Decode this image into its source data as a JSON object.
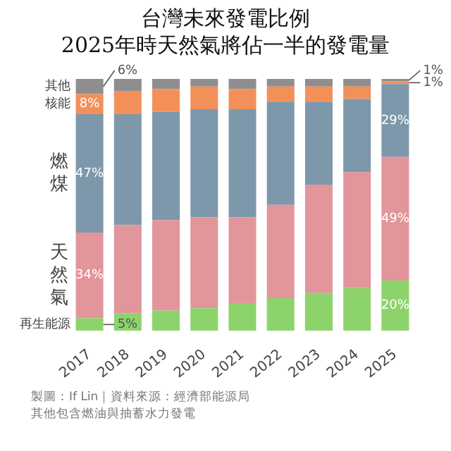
{
  "chart_data": {
    "type": "bar",
    "title": "台灣未來發電比例",
    "subtitle": "2025年時天然氣將佔一半的發電量",
    "annotations": [
      "製圖：If Lin｜資料來源：經濟部能源局",
      "其他包含燃油與抽蓄水力發電"
    ],
    "categories": [
      "2017",
      "2018",
      "2019",
      "2020",
      "2021",
      "2022",
      "2023",
      "2024",
      "2025"
    ],
    "stacked": true,
    "ylim": [
      0,
      100
    ],
    "tick_labels": "x",
    "series": [
      {
        "name": "再生能源",
        "color": "#8dd36b",
        "values": [
          5,
          7,
          8,
          9,
          11,
          13,
          15,
          17,
          20
        ],
        "value_labels": [
          "5%",
          null,
          null,
          null,
          null,
          null,
          null,
          null,
          "20%"
        ]
      },
      {
        "name": "天然氣",
        "color": "#e2959a",
        "values": [
          34,
          35,
          36,
          36,
          34,
          37,
          43,
          46,
          49
        ],
        "value_labels": [
          "34%",
          null,
          null,
          null,
          null,
          null,
          null,
          null,
          "49%"
        ]
      },
      {
        "name": "燃煤",
        "color": "#7d98ab",
        "values": [
          47,
          44,
          43,
          43,
          43,
          41,
          33,
          29,
          29
        ],
        "value_labels": [
          "47%",
          null,
          null,
          null,
          null,
          null,
          null,
          null,
          "29%"
        ]
      },
      {
        "name": "核能",
        "color": "#f3905a",
        "values": [
          8,
          9,
          9,
          9,
          8,
          6,
          6,
          5,
          1
        ],
        "value_labels": [
          "8%",
          null,
          null,
          null,
          null,
          null,
          null,
          null,
          "1%"
        ]
      },
      {
        "name": "其他",
        "color": "#8e8e8e",
        "values": [
          6,
          5,
          4,
          3,
          4,
          3,
          3,
          3,
          1
        ],
        "value_labels": [
          "6%",
          null,
          null,
          null,
          null,
          null,
          null,
          null,
          "1%"
        ]
      }
    ]
  }
}
